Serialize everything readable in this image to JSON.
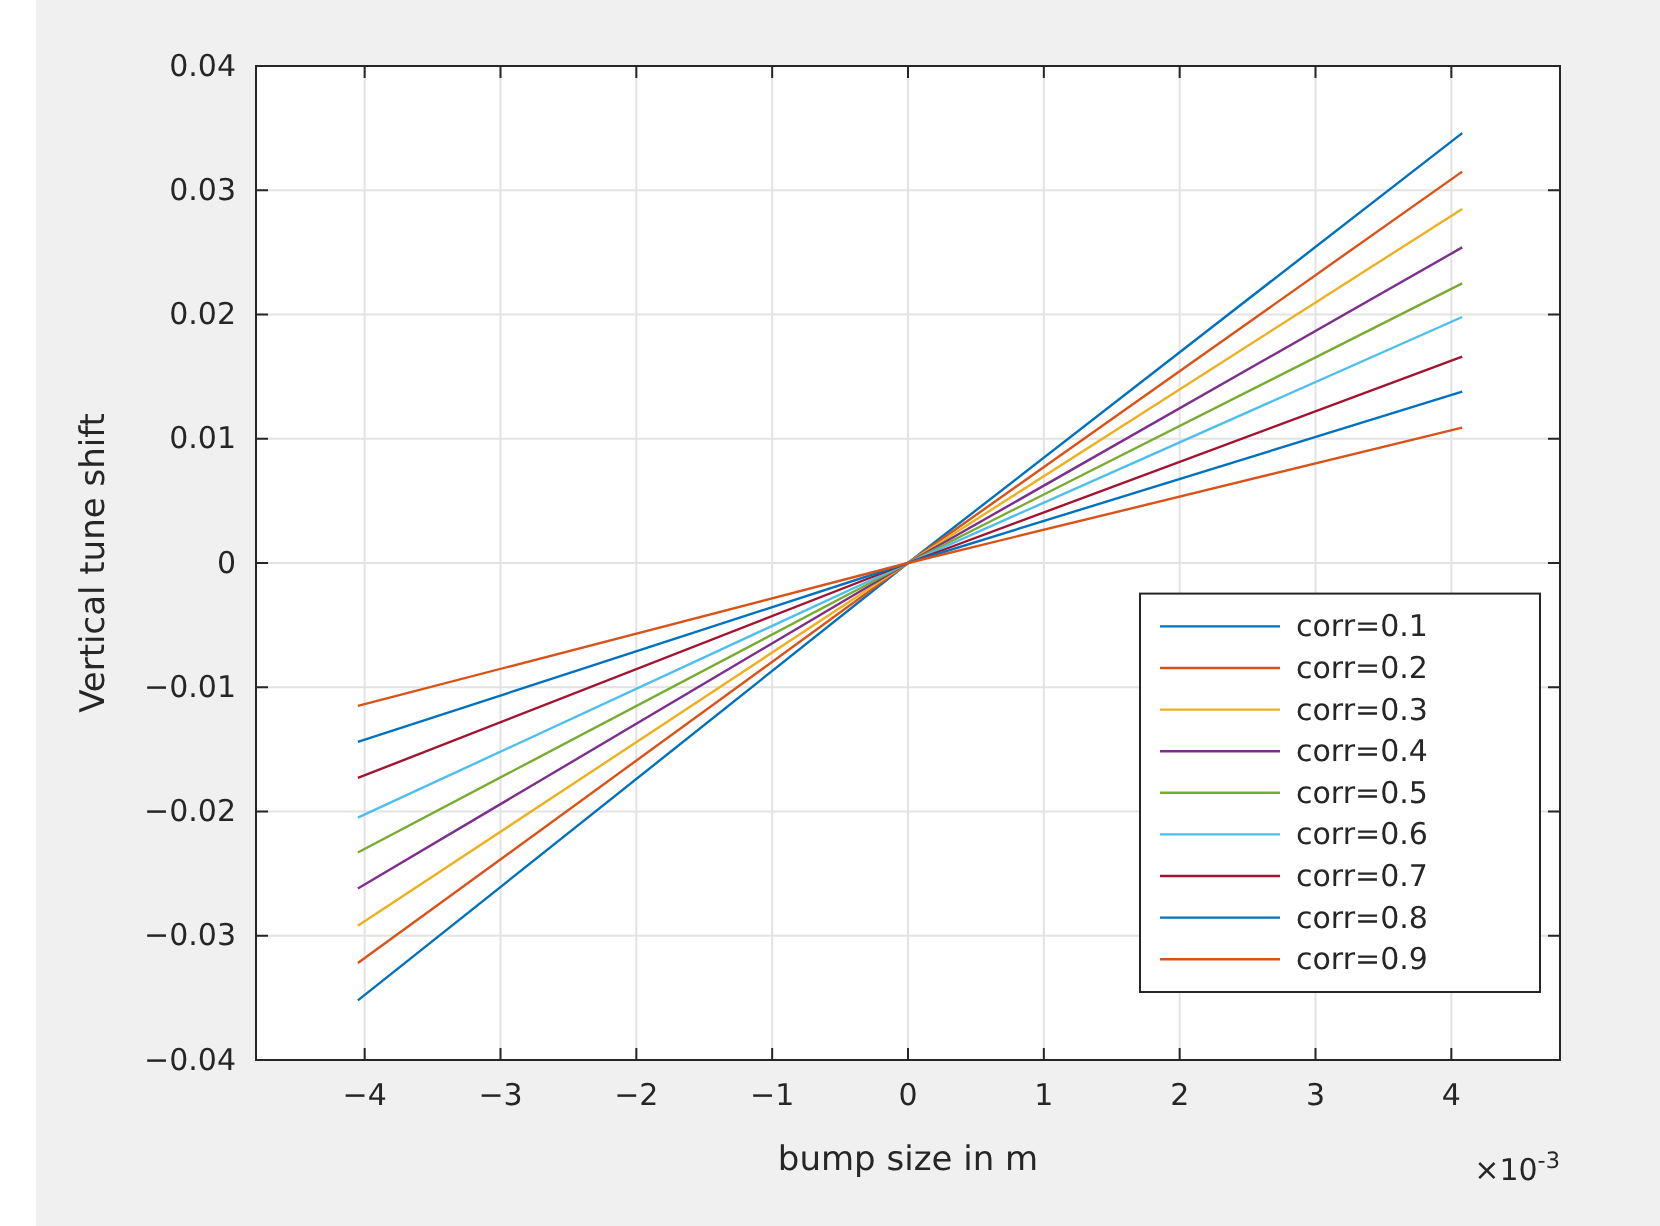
{
  "chart_data": {
    "type": "line",
    "xlabel": "bump size in m",
    "ylabel": "Vertical tune shift",
    "annotations": [
      "×10$^{-3}$"
    ],
    "x": [
      -4.05,
      0,
      4.08
    ],
    "xlim": [
      -4.8,
      4.8
    ],
    "xticks": [
      -4,
      -3,
      -2,
      -1,
      0,
      1,
      2,
      3,
      4
    ],
    "ylim": [
      -0.04,
      0.04
    ],
    "yticks": [
      {
        "value": -0.04,
        "label": "−0.04"
      },
      {
        "value": -0.03,
        "label": "−0.03"
      },
      {
        "value": -0.02,
        "label": "−0.02"
      },
      {
        "value": -0.01,
        "label": "−0.01"
      },
      0,
      0.01,
      0.02,
      0.03,
      0.04
    ],
    "grid": true,
    "legend": "bottom right",
    "line_style": "solid",
    "series": [
      {
        "name": "corr=0.1",
        "color": "#0072bd",
        "values": [
          -0.0352,
          0,
          0.0346
        ]
      },
      {
        "name": "corr=0.2",
        "color": "#d95319",
        "values": [
          -0.0322,
          0,
          0.0315
        ]
      },
      {
        "name": "corr=0.3",
        "color": "#edb120",
        "values": [
          -0.0292,
          0,
          0.0285
        ]
      },
      {
        "name": "corr=0.4",
        "color": "#7e2f8e",
        "values": [
          -0.0262,
          0,
          0.0254
        ]
      },
      {
        "name": "corr=0.5",
        "color": "#77ac30",
        "values": [
          -0.0233,
          0,
          0.0225
        ]
      },
      {
        "name": "corr=0.6",
        "color": "#4dbeee",
        "values": [
          -0.0205,
          0,
          0.0198
        ]
      },
      {
        "name": "corr=0.7",
        "color": "#a2142f",
        "values": [
          -0.0173,
          0,
          0.0166
        ]
      },
      {
        "name": "corr=0.8",
        "color": "#0072bd",
        "values": [
          -0.0144,
          0,
          0.0138
        ]
      },
      {
        "name": "corr=0.9",
        "color": "#d95319",
        "values": [
          -0.0115,
          0,
          0.0109
        ]
      }
    ]
  }
}
